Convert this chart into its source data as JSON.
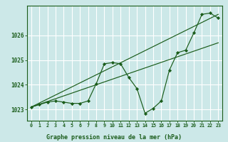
{
  "title": "Graphe pression niveau de la mer (hPa)",
  "bg_color": "#cce8e8",
  "grid_color": "#ffffff",
  "line_color": "#1a5c1a",
  "marker_color": "#1a5c1a",
  "xlim": [
    -0.5,
    23.5
  ],
  "ylim": [
    1022.55,
    1027.2
  ],
  "yticks": [
    1023,
    1024,
    1025,
    1026
  ],
  "xticks": [
    0,
    1,
    2,
    3,
    4,
    5,
    6,
    7,
    8,
    9,
    10,
    11,
    12,
    13,
    14,
    15,
    16,
    17,
    18,
    19,
    20,
    21,
    22,
    23
  ],
  "line1_x": [
    0,
    1,
    2,
    3,
    4,
    5,
    6,
    7,
    8,
    9,
    10,
    11,
    12,
    13,
    14,
    15,
    16,
    17,
    18,
    19,
    20,
    21,
    22,
    23
  ],
  "line1_y": [
    1023.1,
    1023.2,
    1023.3,
    1023.35,
    1023.3,
    1023.25,
    1023.25,
    1023.35,
    1024.05,
    1024.85,
    1024.9,
    1024.85,
    1024.3,
    1023.85,
    1022.85,
    1023.05,
    1023.35,
    1024.6,
    1025.3,
    1025.4,
    1026.1,
    1026.85,
    1026.9,
    1026.7
  ],
  "line2_x": [
    0,
    23
  ],
  "line2_y": [
    1023.1,
    1026.85
  ],
  "line3_x": [
    0,
    23
  ],
  "line3_y": [
    1023.1,
    1025.7
  ],
  "figwidth": 3.2,
  "figheight": 2.0,
  "dpi": 100
}
